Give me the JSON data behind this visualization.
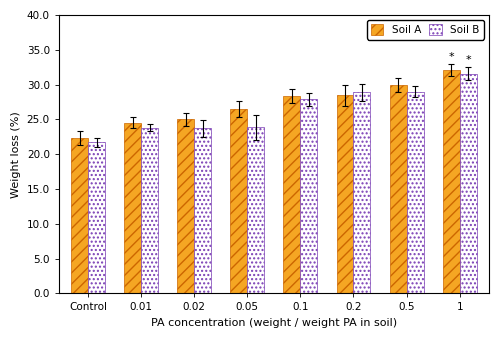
{
  "categories": [
    "Control",
    "0.01",
    "0.02",
    "0.05",
    "0.1",
    "0.2",
    "0.5",
    "1"
  ],
  "soil_a_values": [
    22.3,
    24.5,
    25.0,
    26.5,
    28.4,
    28.5,
    29.9,
    32.1
  ],
  "soil_b_values": [
    21.7,
    23.8,
    23.7,
    23.9,
    27.9,
    28.9,
    29.0,
    31.6
  ],
  "soil_a_errors": [
    1.0,
    0.8,
    0.9,
    1.2,
    1.0,
    1.5,
    1.0,
    0.8
  ],
  "soil_b_errors": [
    0.6,
    0.5,
    1.2,
    1.8,
    0.9,
    1.2,
    0.8,
    0.9
  ],
  "soil_a_face_color": "#F5A623",
  "soil_a_hatch_color": "#CC6600",
  "soil_b_face_color": "#FFFFFF",
  "soil_b_hatch_color": "#7B3FB5",
  "soil_a_hatch": "///",
  "soil_b_hatch": "....",
  "xlabel": "PA concentration (weight / weight PA in soil)",
  "ylabel": "Weight loss (%)",
  "ylim": [
    0.0,
    40.0
  ],
  "yticks": [
    0.0,
    5.0,
    10.0,
    15.0,
    20.0,
    25.0,
    30.0,
    35.0,
    40.0
  ],
  "legend_labels": [
    "Soil A",
    "Soil B"
  ],
  "significant_indices": [
    7
  ],
  "bar_width": 0.32,
  "axis_fontsize": 8,
  "tick_fontsize": 7.5,
  "legend_fontsize": 7.5
}
